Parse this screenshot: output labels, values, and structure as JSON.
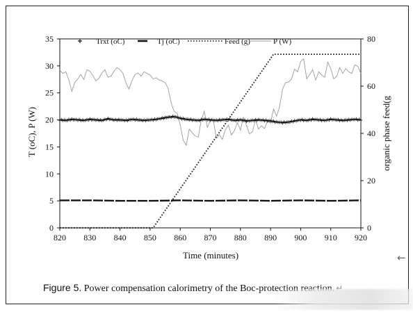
{
  "caption": {
    "figure_label": "Figure 5.",
    "text": " Power compensation calorimetry of the Boc-protection reaction.",
    "return_mark": "↵"
  },
  "side_arrow": "←",
  "colors": {
    "trxt": "#111111",
    "tj": "#111111",
    "feed": "#111111",
    "power": "#9a9a9a",
    "axis": "#111111"
  },
  "chart_data": {
    "type": "line",
    "xlabel": "Time (minutes)",
    "ylabel_left": "T (oC), P (W)",
    "ylabel_right": "organic phase feed(g",
    "xlim": [
      820,
      920
    ],
    "ylim_left": [
      0,
      35
    ],
    "ylim_right": [
      0,
      80
    ],
    "x_ticks": [
      "820",
      "830",
      "840",
      "850",
      "860",
      "870",
      "880",
      "890",
      "900",
      "910",
      "920"
    ],
    "y_left_ticks": [
      "0",
      "5",
      "10",
      "15",
      "20",
      "25",
      "30",
      "35"
    ],
    "y_right_ticks": [
      "0",
      "20",
      "40",
      "60",
      "80"
    ],
    "legend_placement": "top",
    "grid": false,
    "series": [
      {
        "name": "Trxt (oC)",
        "axis": "left",
        "style": "plus-markers",
        "x": [
          820,
          822,
          824,
          826,
          828,
          830,
          832,
          834,
          836,
          838,
          840,
          842,
          844,
          846,
          848,
          850,
          852,
          854,
          856,
          858,
          860,
          862,
          864,
          866,
          868,
          870,
          872,
          874,
          876,
          878,
          880,
          882,
          884,
          886,
          888,
          890,
          892,
          894,
          896,
          898,
          900,
          902,
          904,
          906,
          908,
          910,
          912,
          914,
          916,
          918,
          920
        ],
        "y": [
          20.0,
          19.9,
          20.1,
          20.0,
          19.9,
          20.1,
          20.0,
          19.9,
          20.2,
          20.0,
          20.0,
          19.9,
          20.1,
          20.0,
          19.9,
          20.0,
          20.1,
          20.3,
          20.5,
          20.6,
          20.3,
          20.1,
          20.0,
          19.9,
          20.1,
          20.0,
          19.9,
          20.0,
          20.1,
          19.9,
          20.0,
          19.8,
          19.9,
          20.0,
          19.9,
          19.8,
          19.6,
          19.5,
          19.6,
          19.8,
          20.0,
          19.9,
          20.1,
          20.0,
          19.9,
          20.1,
          20.0,
          19.9,
          20.0,
          20.1,
          20.0
        ]
      },
      {
        "name": "Tj (oC)",
        "axis": "left",
        "style": "thick-dash",
        "x": [
          820,
          830,
          840,
          850,
          860,
          870,
          880,
          890,
          900,
          910,
          920
        ],
        "y": [
          5.1,
          5.1,
          5.0,
          5.0,
          5.1,
          5.0,
          5.1,
          5.0,
          5.1,
          5.0,
          5.1
        ]
      },
      {
        "name": "Feed (g)",
        "axis": "right",
        "style": "dotted",
        "x": [
          820,
          851,
          891,
          920
        ],
        "y": [
          0,
          0,
          73.5,
          73.5
        ]
      },
      {
        "name": "P (W)",
        "axis": "left",
        "style": "thin-gray",
        "x": [
          820,
          821,
          822,
          823,
          824,
          825,
          826,
          827,
          828,
          829,
          830,
          831,
          832,
          833,
          834,
          835,
          836,
          837,
          838,
          839,
          840,
          841,
          842,
          843,
          844,
          845,
          846,
          847,
          848,
          849,
          850,
          851,
          852,
          853,
          854,
          855,
          856,
          857,
          858,
          859,
          860,
          861,
          862,
          863,
          864,
          865,
          866,
          867,
          868,
          869,
          870,
          871,
          872,
          873,
          874,
          875,
          876,
          877,
          878,
          879,
          880,
          881,
          882,
          883,
          884,
          885,
          886,
          887,
          888,
          889,
          890,
          891,
          892,
          893,
          894,
          895,
          896,
          897,
          898,
          899,
          900,
          901,
          902,
          903,
          904,
          905,
          906,
          907,
          908,
          909,
          910,
          911,
          912,
          913,
          914,
          915,
          916,
          917,
          918,
          919,
          920
        ],
        "y": [
          29.2,
          28.6,
          28.9,
          27.4,
          25.3,
          27.0,
          27.6,
          28.4,
          27.5,
          29.3,
          29.0,
          28.2,
          27.2,
          27.7,
          28.7,
          29.3,
          27.9,
          28.1,
          29.0,
          29.7,
          29.3,
          28.6,
          26.8,
          25.7,
          27.3,
          28.4,
          28.7,
          28.1,
          28.9,
          28.6,
          28.3,
          27.6,
          27.8,
          27.4,
          27.2,
          26.9,
          25.8,
          23.1,
          21.6,
          21.2,
          19.1,
          16.2,
          15.3,
          18.3,
          17.6,
          17.0,
          16.8,
          20.0,
          21.6,
          18.6,
          19.9,
          20.0,
          16.6,
          17.3,
          16.4,
          18.2,
          19.0,
          17.2,
          18.0,
          19.5,
          18.1,
          20.5,
          19.0,
          17.4,
          17.8,
          20.0,
          18.3,
          18.9,
          18.4,
          19.8,
          19.4,
          22.0,
          20.7,
          22.4,
          25.7,
          26.9,
          27.0,
          27.6,
          29.4,
          28.9,
          30.8,
          31.3,
          27.6,
          28.4,
          29.3,
          27.4,
          28.9,
          28.3,
          27.9,
          30.7,
          29.5,
          27.6,
          28.1,
          29.7,
          28.6,
          29.5,
          28.9,
          28.6,
          30.2,
          29.9,
          28.6
        ]
      }
    ]
  }
}
